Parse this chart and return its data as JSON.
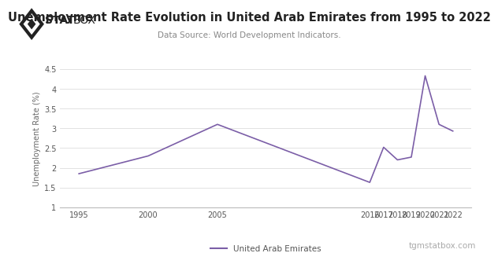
{
  "years": [
    1995,
    2000,
    2005,
    2016,
    2017,
    2018,
    2019,
    2020,
    2021,
    2022
  ],
  "values": [
    1.85,
    2.3,
    3.1,
    1.63,
    2.52,
    2.2,
    2.27,
    4.33,
    3.1,
    2.93
  ],
  "line_color": "#7B5EA7",
  "title": "Unemployment Rate Evolution in United Arab Emirates from 1995 to 2022",
  "subtitle": "Data Source: World Development Indicators.",
  "ylabel": "Unemployment Rate (%)",
  "legend_label": "United Arab Emirates",
  "watermark": "tgmstatbox.com",
  "ylim": [
    1.0,
    4.5
  ],
  "yticks": [
    1.0,
    1.5,
    2.0,
    2.5,
    3.0,
    3.5,
    4.0,
    4.5
  ],
  "background_color": "#ffffff",
  "grid_color": "#dddddd",
  "title_fontsize": 10.5,
  "subtitle_fontsize": 7.5,
  "ylabel_fontsize": 7,
  "tick_fontsize": 7,
  "legend_fontsize": 7.5,
  "watermark_fontsize": 7.5,
  "logo_fontsize": 10
}
